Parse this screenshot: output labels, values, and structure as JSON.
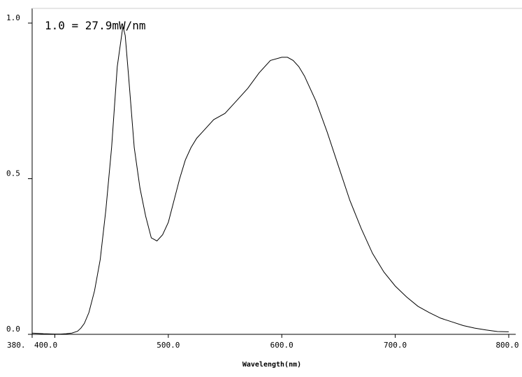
{
  "chart_data": {
    "type": "line",
    "title": "",
    "annotation": "1.0 = 27.9mW/nm",
    "xlabel": "Wavelength(nm)",
    "ylabel": "",
    "xlim": [
      380,
      800
    ],
    "ylim": [
      0,
      1
    ],
    "x_tick_labels": [
      {
        "value": 380,
        "label": "380."
      },
      {
        "value": 400,
        "label": "400.0"
      },
      {
        "value": 500,
        "label": "500.0"
      },
      {
        "value": 600,
        "label": "600.0"
      },
      {
        "value": 700,
        "label": "700.0"
      },
      {
        "value": 800,
        "label": "800.0"
      }
    ],
    "y_tick_labels": [
      {
        "value": 0,
        "label": "0.0"
      },
      {
        "value": 0.5,
        "label": "0.5"
      },
      {
        "value": 1,
        "label": "1.0"
      }
    ],
    "grid": false,
    "series": [
      {
        "x": [
          380,
          390,
          400,
          405,
          410,
          415,
          420,
          423,
          426,
          430,
          435,
          440,
          445,
          450,
          455,
          460,
          462,
          465,
          470,
          475,
          480,
          485,
          490,
          495,
          500,
          505,
          510,
          515,
          520,
          525,
          530,
          540,
          550,
          560,
          570,
          580,
          590,
          600,
          605,
          610,
          615,
          620,
          630,
          640,
          650,
          660,
          670,
          680,
          690,
          700,
          710,
          720,
          730,
          740,
          750,
          760,
          770,
          780,
          790,
          800
        ],
        "y": [
          0.004,
          0.002,
          0.001,
          0.001,
          0.002,
          0.004,
          0.01,
          0.02,
          0.035,
          0.07,
          0.14,
          0.24,
          0.4,
          0.6,
          0.86,
          0.99,
          0.96,
          0.83,
          0.6,
          0.47,
          0.38,
          0.31,
          0.3,
          0.32,
          0.36,
          0.43,
          0.5,
          0.56,
          0.6,
          0.63,
          0.65,
          0.69,
          0.71,
          0.75,
          0.79,
          0.84,
          0.88,
          0.89,
          0.89,
          0.88,
          0.86,
          0.83,
          0.75,
          0.65,
          0.54,
          0.43,
          0.34,
          0.26,
          0.2,
          0.155,
          0.12,
          0.09,
          0.07,
          0.052,
          0.04,
          0.028,
          0.02,
          0.014,
          0.009,
          0.008
        ]
      }
    ],
    "colors": {
      "line": "#000000",
      "axis": "#000000",
      "background": "#ffffff"
    }
  }
}
